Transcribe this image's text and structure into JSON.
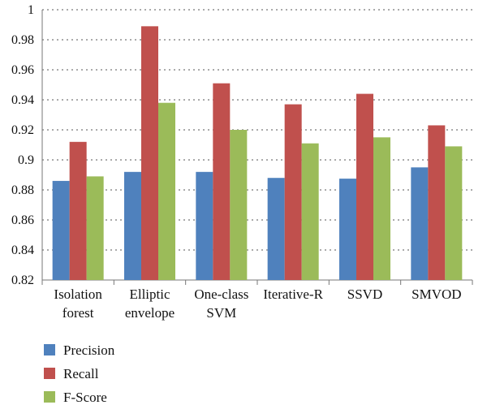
{
  "chart_data": {
    "type": "bar",
    "categories": [
      [
        "Isolation",
        "forest"
      ],
      [
        "Elliptic",
        "envelope"
      ],
      [
        "One-class",
        "SVM"
      ],
      [
        "Iterative-R"
      ],
      [
        "SSVD"
      ],
      [
        "SMVOD"
      ]
    ],
    "series": [
      {
        "name": "Precision",
        "color": "#4f81bd",
        "values": [
          0.886,
          0.892,
          0.892,
          0.888,
          0.8875,
          0.895
        ]
      },
      {
        "name": "Recall",
        "color": "#c0504d",
        "values": [
          0.912,
          0.989,
          0.951,
          0.937,
          0.944,
          0.923
        ]
      },
      {
        "name": "F-Score",
        "color": "#9bbb59",
        "values": [
          0.889,
          0.938,
          0.92,
          0.911,
          0.915,
          0.909
        ]
      }
    ],
    "ylim": [
      0.82,
      1.0
    ],
    "yticks": [
      "0.82",
      "0.84",
      "0.86",
      "0.88",
      "0.9",
      "0.92",
      "0.94",
      "0.96",
      "0.98",
      "1"
    ],
    "grid": true,
    "legend_position": "bottom-left"
  }
}
